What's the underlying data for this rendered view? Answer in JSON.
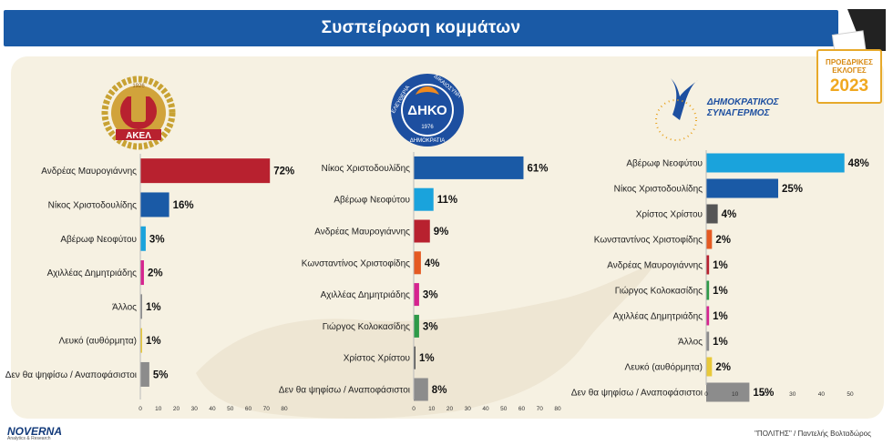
{
  "header": {
    "title": "Συσπείρωση κομμάτων"
  },
  "badge": {
    "line1": "ΠΡΟΕΔΡΙΚΕΣ",
    "line2": "ΕΚΛΟΓΕΣ",
    "year": "2023"
  },
  "footer": {
    "brand": "NOVERNA",
    "brand_sub": "Analytics & Research",
    "credit": "\"ΠΟΛΙΤΗΣ\" / Παντελής Βολταδώρος"
  },
  "logos": {
    "akel": {
      "text": "ΑΚΕΛ",
      "year": "1926"
    },
    "diko": {
      "text": "ΔΗΚΟ",
      "year": "1976",
      "ring_top": "ΔΙΚΑΙΟΣΥΝΗ",
      "ring_left": "ΕΛΕΥΘΕΡΙΑ",
      "ring_bottom": "ΔΗΜΟΚΡΑΤΙΑ"
    },
    "disy": {
      "line1": "ΔΗΜΟΚΡΑΤΙΚΟΣ",
      "line2": "ΣΥΝΑΓΕΡΜΟΣ"
    }
  },
  "colors": {
    "red": "#b8212f",
    "blue": "#1a5aa6",
    "cyan": "#1aa3dc",
    "magenta": "#d6248f",
    "gray": "#8c8c8c",
    "yellow": "#e8c93a",
    "orange": "#e55a22",
    "green": "#2e9a48",
    "darkgray": "#555555"
  },
  "chart_data": [
    {
      "type": "bar",
      "party": "ΑΚΕΛ",
      "categories": [
        "Ανδρέας Μαυρογιάννης",
        "Νίκος Χριστοδουλίδης",
        "Αβέρωφ Νεοφύτου",
        "Αχιλλέας Δημητριάδης",
        "Άλλος",
        "Λευκό (αυθόρμητα)",
        "Δεν θα ψηφίσω / Αναποφάσιστοι"
      ],
      "values": [
        72,
        16,
        3,
        2,
        1,
        1,
        5
      ],
      "labels": [
        "72%",
        "16%",
        "3%",
        "2%",
        "1%",
        "1%",
        "5%"
      ],
      "colors": [
        "#b8212f",
        "#1a5aa6",
        "#1aa3dc",
        "#d6248f",
        "#8c8c8c",
        "#e8c93a",
        "#8c8c8c"
      ],
      "xlim": [
        0,
        80
      ],
      "xticks": [
        "0",
        "10",
        "20",
        "30",
        "40",
        "50",
        "60",
        "70",
        "80"
      ]
    },
    {
      "type": "bar",
      "party": "ΔΗΚΟ",
      "categories": [
        "Νίκος Χριστοδουλίδης",
        "Αβέρωφ Νεοφύτου",
        "Ανδρέας Μαυρογιάννης",
        "Κωνσταντίνος Χριστοφίδης",
        "Αχιλλέας Δημητριάδης",
        "Γιώργος Κολοκασίδης",
        "Χρίστος Χρίστου",
        "Δεν θα ψηφίσω / Αναποφάσιστοι"
      ],
      "values": [
        61,
        11,
        9,
        4,
        3,
        3,
        1,
        8
      ],
      "labels": [
        "61%",
        "11%",
        "9%",
        "4%",
        "3%",
        "3%",
        "1%",
        "8%"
      ],
      "colors": [
        "#1a5aa6",
        "#1aa3dc",
        "#b8212f",
        "#e55a22",
        "#d6248f",
        "#2e9a48",
        "#555555",
        "#8c8c8c"
      ],
      "xlim": [
        0,
        80
      ],
      "xticks": [
        "0",
        "10",
        "20",
        "30",
        "40",
        "50",
        "60",
        "70",
        "80"
      ]
    },
    {
      "type": "bar",
      "party": "ΔΗΣΥ",
      "categories": [
        "Αβέρωφ Νεοφύτου",
        "Νίκος Χριστοδουλίδης",
        "Χρίστος Χρίστου",
        "Κωνσταντίνος Χριστοφίδης",
        "Ανδρέας Μαυρογιάννης",
        "Γιώργος Κολοκασίδης",
        "Αχιλλέας Δημητριάδης",
        "Άλλος",
        "Λευκό (αυθόρμητα)",
        "Δεν θα ψηφίσω / Αναποφάσιστοι"
      ],
      "values": [
        48,
        25,
        4,
        2,
        1,
        1,
        1,
        1,
        2,
        15
      ],
      "labels": [
        "48%",
        "25%",
        "4%",
        "2%",
        "1%",
        "1%",
        "1%",
        "1%",
        "2%",
        "15%"
      ],
      "colors": [
        "#1aa3dc",
        "#1a5aa6",
        "#555555",
        "#e55a22",
        "#b8212f",
        "#2e9a48",
        "#d6248f",
        "#8c8c8c",
        "#e8c93a",
        "#8c8c8c"
      ],
      "xlim": [
        0,
        50
      ],
      "xticks": [
        "0",
        "10",
        "20",
        "30",
        "40",
        "50"
      ]
    }
  ]
}
